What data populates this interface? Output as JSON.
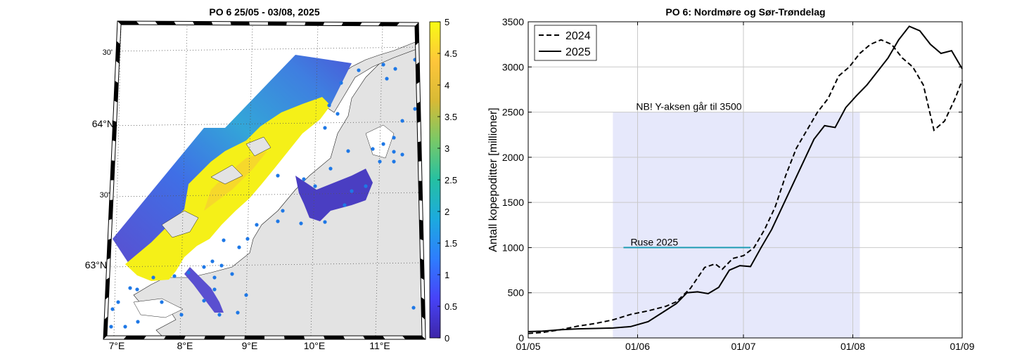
{
  "map_panel": {
    "title": "PO 6  25/05 - 03/08, 2025",
    "lat_labels": [
      "30'",
      "64°N",
      "30'",
      "63°N"
    ],
    "lon_labels": [
      "7°E",
      "8°E",
      "9°E",
      "10°E",
      "11°E"
    ],
    "colorbar": {
      "min": 0,
      "max": 5,
      "tick_values": [
        0,
        0.5,
        1,
        1.5,
        2,
        2.5,
        3,
        3.5,
        4,
        4.5,
        5
      ],
      "tick_labels": [
        "0",
        "0.5",
        "1",
        "1.5",
        "2",
        "2.5",
        "3",
        "3.5",
        "4",
        "4.5",
        "5"
      ],
      "colormap": [
        "#3e26a8",
        "#4743f8",
        "#2e7dfe",
        "#1caadf",
        "#25c0a2",
        "#79c967",
        "#d8ba35",
        "#fec63a",
        "#f9fb15"
      ]
    },
    "colors": {
      "land": "#e3e3e3",
      "station_dot": "#1e78e6",
      "high_value": "#f5f018",
      "low_value": "#4a3ec2"
    }
  },
  "line_panel": {
    "title": "PO 6: Nordmøre og Sør-Trøndelag",
    "annotation": "NB! Y-aksen går til 3500",
    "ruse_label": "Ruse 2025",
    "colors": {
      "shade": "#e6e8fb",
      "ruse_line": "#1f9cb4",
      "series": "#000000"
    }
  },
  "chart_data": {
    "type": "line",
    "title": "PO 6: Nordmøre og Sør-Trøndelag",
    "xlabel": "",
    "ylabel": "Antall kopepoditter [millioner]",
    "xlim": [
      "2025-05-01",
      "2025-09-01"
    ],
    "ylim": [
      0,
      3500
    ],
    "x_ticks": [
      "2025-05-01",
      "2025-06-01",
      "2025-07-01",
      "2025-08-01",
      "2025-09-01"
    ],
    "x_tick_labels": [
      "01/05",
      "01/06",
      "01/07",
      "01/08",
      "01/09"
    ],
    "y_ticks": [
      0,
      500,
      1000,
      1500,
      2000,
      2500,
      3000,
      3500
    ],
    "y_tick_labels": [
      "0",
      "500",
      "1000",
      "1500",
      "2000",
      "2500",
      "3000",
      "3500"
    ],
    "grid": true,
    "legend": "top-left",
    "shaded_region": {
      "x": [
        "2025-05-25",
        "2025-08-03"
      ],
      "y": [
        0,
        2500
      ]
    },
    "ruse_line": {
      "label": "Ruse 2025",
      "x": [
        "2025-05-28",
        "2025-07-03"
      ],
      "y": 1000
    },
    "series": [
      {
        "name": "2024",
        "style": "dashed",
        "x": [
          "2025-05-01",
          "2025-05-05",
          "2025-05-10",
          "2025-05-15",
          "2025-05-20",
          "2025-05-25",
          "2025-05-30",
          "2025-06-04",
          "2025-06-09",
          "2025-06-12",
          "2025-06-16",
          "2025-06-20",
          "2025-06-23",
          "2025-06-25",
          "2025-06-28",
          "2025-07-01",
          "2025-07-04",
          "2025-07-07",
          "2025-07-10",
          "2025-07-13",
          "2025-07-16",
          "2025-07-19",
          "2025-07-22",
          "2025-07-25",
          "2025-07-28",
          "2025-07-31",
          "2025-08-03",
          "2025-08-06",
          "2025-08-09",
          "2025-08-12",
          "2025-08-15",
          "2025-08-18",
          "2025-08-21",
          "2025-08-24",
          "2025-08-27",
          "2025-08-30",
          "2025-09-01"
        ],
        "y": [
          50,
          60,
          90,
          130,
          160,
          200,
          260,
          300,
          350,
          400,
          550,
          780,
          820,
          760,
          880,
          910,
          1000,
          1200,
          1450,
          1800,
          2100,
          2300,
          2500,
          2650,
          2900,
          3000,
          3150,
          3250,
          3300,
          3250,
          3100,
          3000,
          2800,
          2300,
          2400,
          2650,
          2850
        ]
      },
      {
        "name": "2025",
        "style": "solid",
        "x": [
          "2025-05-01",
          "2025-05-05",
          "2025-05-10",
          "2025-05-15",
          "2025-05-20",
          "2025-05-25",
          "2025-05-30",
          "2025-06-04",
          "2025-06-08",
          "2025-06-12",
          "2025-06-15",
          "2025-06-18",
          "2025-06-21",
          "2025-06-24",
          "2025-06-27",
          "2025-06-30",
          "2025-07-03",
          "2025-07-06",
          "2025-07-09",
          "2025-07-12",
          "2025-07-15",
          "2025-07-18",
          "2025-07-21",
          "2025-07-24",
          "2025-07-27",
          "2025-07-30",
          "2025-08-02",
          "2025-08-05",
          "2025-08-08",
          "2025-08-11",
          "2025-08-14",
          "2025-08-17",
          "2025-08-20",
          "2025-08-23",
          "2025-08-26",
          "2025-08-29",
          "2025-09-01"
        ],
        "y": [
          70,
          75,
          90,
          100,
          105,
          110,
          125,
          180,
          280,
          380,
          500,
          510,
          490,
          560,
          750,
          800,
          790,
          1000,
          1200,
          1450,
          1700,
          1950,
          2200,
          2350,
          2330,
          2550,
          2680,
          2800,
          2950,
          3100,
          3300,
          3450,
          3400,
          3250,
          3150,
          3180,
          2980
        ]
      }
    ]
  }
}
